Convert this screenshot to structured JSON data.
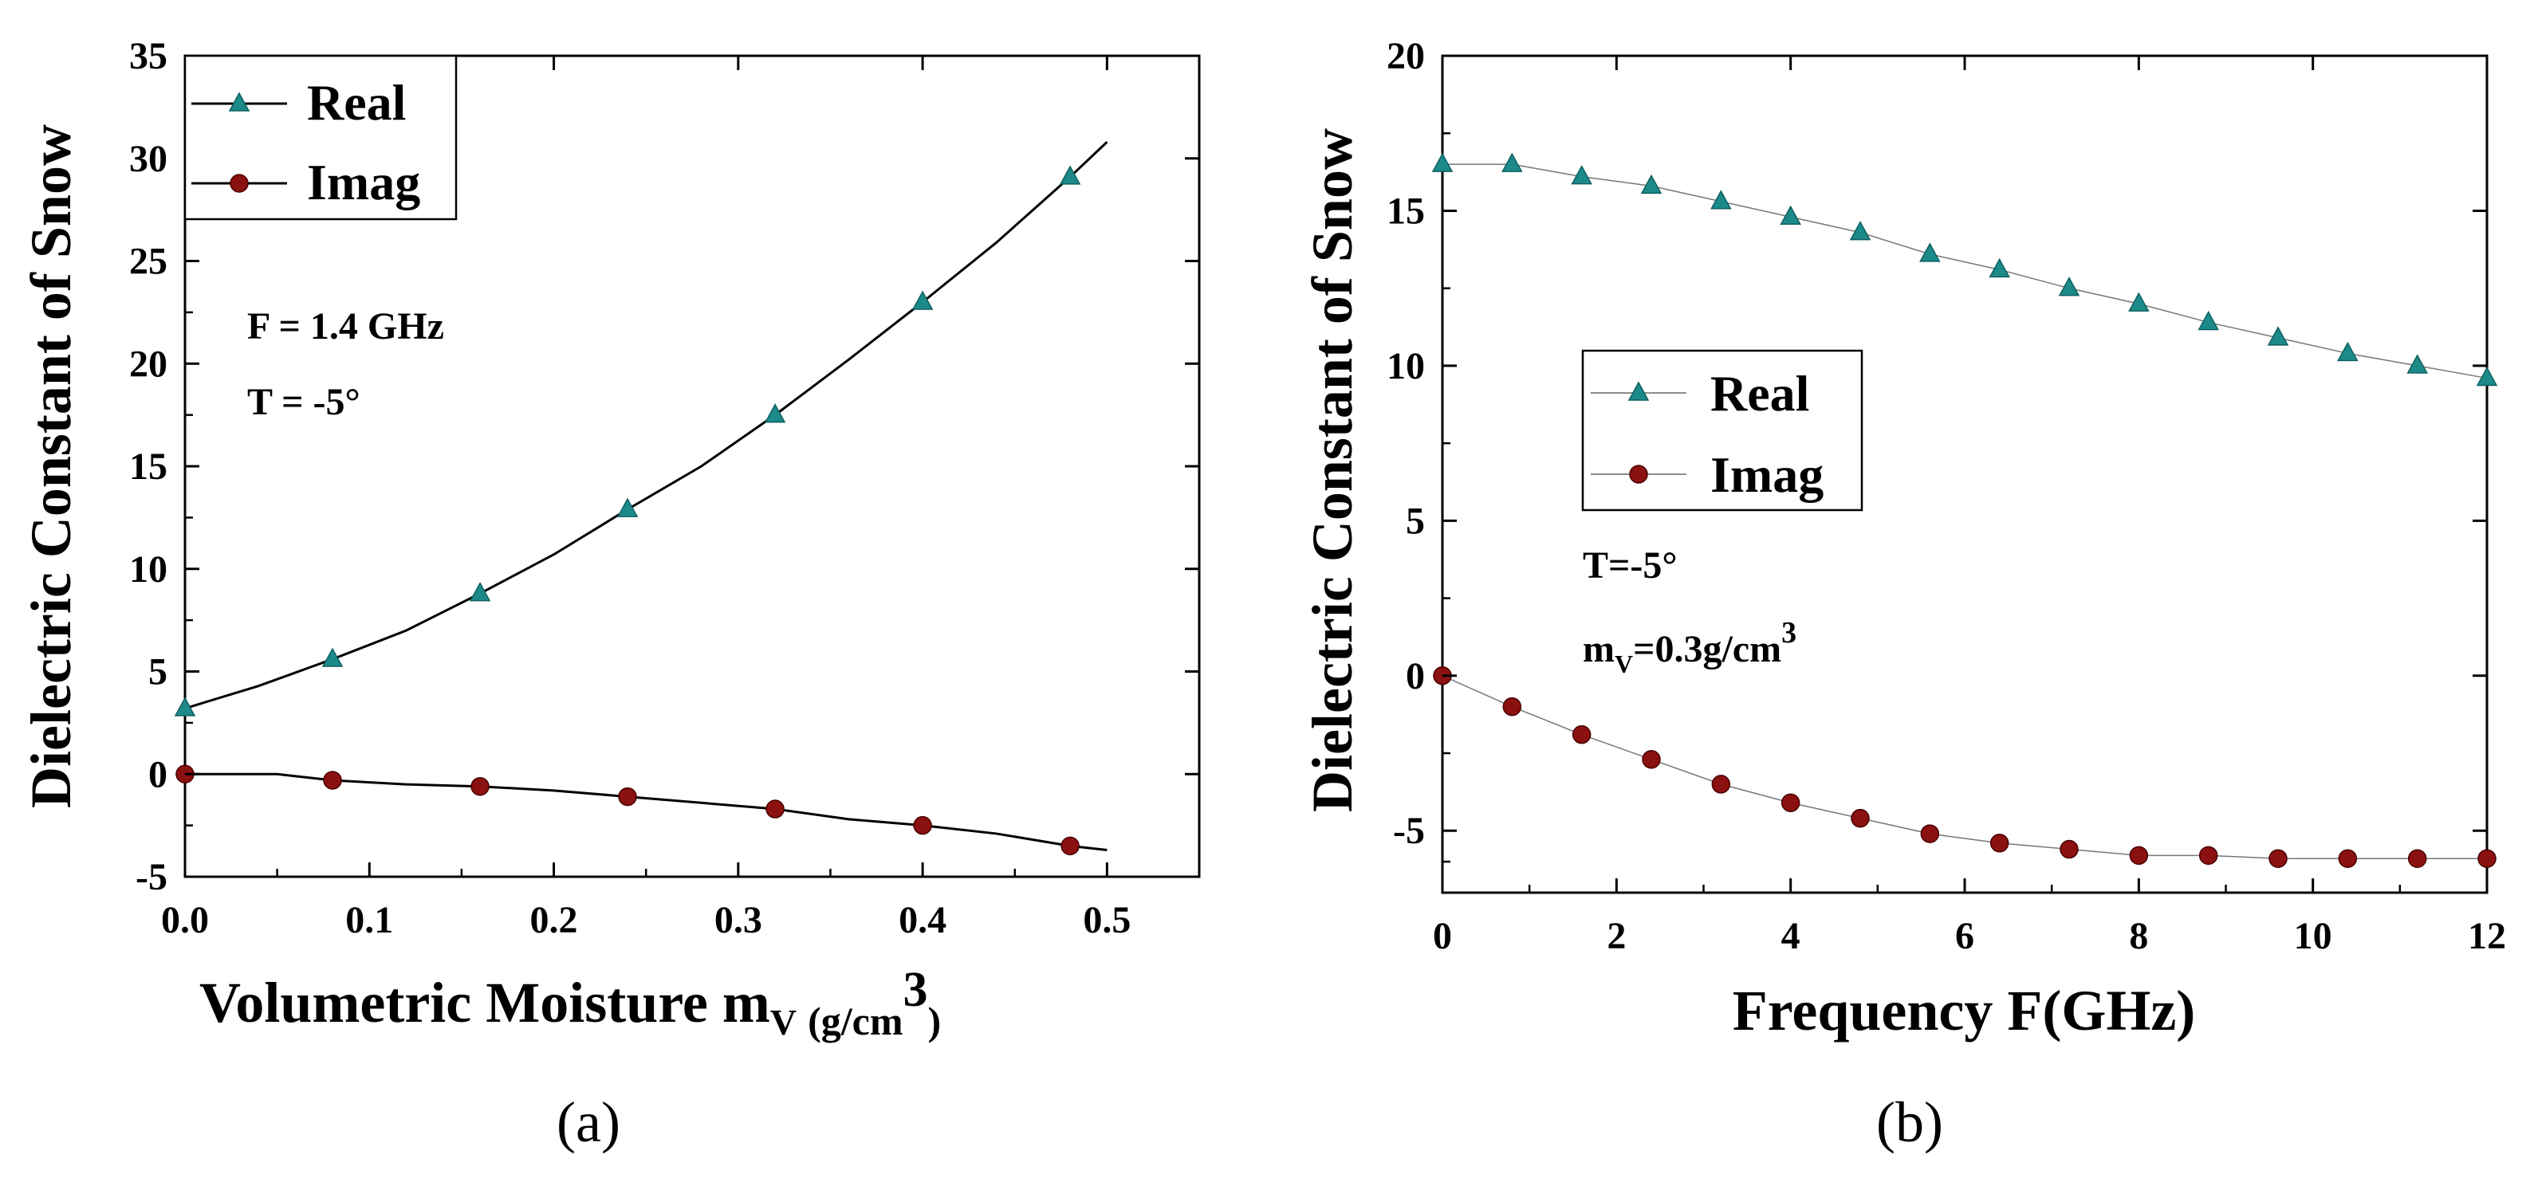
{
  "chart_data": [
    {
      "type": "line",
      "panel_label": "(a)",
      "xlabel_main": "Volumetric Moisture m",
      "xlabel_sub": "V",
      "xlabel_unit_small": "(g/cm",
      "xlabel_sup": "3",
      "xlabel_close_small": ")",
      "ylabel": "Dielectric Constant of Snow",
      "xlim": [
        0.0,
        0.55
      ],
      "ylim": [
        -5,
        35
      ],
      "xticks": [
        0.0,
        0.1,
        0.2,
        0.3,
        0.4,
        0.5
      ],
      "xtick_labels": [
        "0.0",
        "0.1",
        "0.2",
        "0.3",
        "0.4",
        "0.5"
      ],
      "yticks": [
        -5,
        0,
        5,
        10,
        15,
        20,
        25,
        30,
        35
      ],
      "ytick_labels": [
        "-5",
        "0",
        "5",
        "10",
        "15",
        "20",
        "25",
        "30",
        "35"
      ],
      "annotations": [
        "F = 1.4 GHz",
        "T = -5°"
      ],
      "legend": {
        "position": "top-left",
        "entries": [
          "Real",
          "Imag"
        ]
      },
      "series": [
        {
          "name": "Real",
          "color": "#1d8a8a",
          "marker": "triangle",
          "line_x": [
            0.0,
            0.04,
            0.08,
            0.12,
            0.16,
            0.2,
            0.24,
            0.28,
            0.32,
            0.36,
            0.4,
            0.44,
            0.48,
            0.5
          ],
          "line_y": [
            3.2,
            4.3,
            5.6,
            7.0,
            8.8,
            10.7,
            12.9,
            15.0,
            17.5,
            20.2,
            23.0,
            25.9,
            29.1,
            30.8
          ],
          "x": [
            0.0,
            0.08,
            0.16,
            0.24,
            0.32,
            0.4,
            0.48
          ],
          "y": [
            3.2,
            5.6,
            8.8,
            12.9,
            17.5,
            23.0,
            29.1
          ]
        },
        {
          "name": "Imag",
          "color": "#8b1010",
          "marker": "circle",
          "line_x": [
            0.0,
            0.05,
            0.08,
            0.12,
            0.16,
            0.2,
            0.24,
            0.28,
            0.32,
            0.36,
            0.4,
            0.44,
            0.48,
            0.5
          ],
          "line_y": [
            0.0,
            0.0,
            -0.3,
            -0.5,
            -0.6,
            -0.8,
            -1.1,
            -1.4,
            -1.7,
            -2.2,
            -2.5,
            -2.9,
            -3.5,
            -3.7
          ],
          "x": [
            0.0,
            0.08,
            0.16,
            0.24,
            0.32,
            0.4,
            0.48
          ],
          "y": [
            0.0,
            -0.3,
            -0.6,
            -1.1,
            -1.7,
            -2.5,
            -3.5
          ]
        }
      ]
    },
    {
      "type": "line",
      "panel_label": "(b)",
      "xlabel": "Frequency F(GHz)",
      "ylabel": "Dielectric Constant of Snow",
      "xlim": [
        0,
        12
      ],
      "ylim": [
        -7,
        20
      ],
      "xticks": [
        0,
        2,
        4,
        6,
        8,
        10,
        12
      ],
      "xtick_labels": [
        "0",
        "2",
        "4",
        "6",
        "8",
        "10",
        "12"
      ],
      "yticks": [
        -5,
        0,
        5,
        10,
        15,
        20
      ],
      "ytick_labels": [
        "-5",
        "0",
        "5",
        "10",
        "15",
        "20"
      ],
      "annotations": [
        "T=-5°",
        "m",
        "V",
        "=0.3g/cm",
        "3"
      ],
      "legend": {
        "position": "center-left",
        "entries": [
          "Real",
          "Imag"
        ]
      },
      "series": [
        {
          "name": "Real",
          "color": "#1d8a8a",
          "marker": "triangle",
          "x": [
            0,
            0.8,
            1.6,
            2.4,
            3.2,
            4.0,
            4.8,
            5.6,
            6.4,
            7.2,
            8.0,
            8.8,
            9.6,
            10.4,
            11.2,
            12.0
          ],
          "y": [
            16.5,
            16.5,
            16.1,
            15.8,
            15.3,
            14.8,
            14.3,
            13.6,
            13.1,
            12.5,
            12.0,
            11.4,
            10.9,
            10.4,
            10.0,
            9.6
          ]
        },
        {
          "name": "Imag",
          "color": "#8b1010",
          "marker": "circle",
          "x": [
            0,
            0.8,
            1.6,
            2.4,
            3.2,
            4.0,
            4.8,
            5.6,
            6.4,
            7.2,
            8.0,
            8.8,
            9.6,
            10.4,
            11.2,
            12.0
          ],
          "y": [
            0.0,
            -1.0,
            -1.9,
            -2.7,
            -3.5,
            -4.1,
            -4.6,
            -5.1,
            -5.4,
            -5.6,
            -5.8,
            -5.8,
            -5.9,
            -5.9,
            -5.9,
            -5.9
          ]
        }
      ]
    }
  ]
}
